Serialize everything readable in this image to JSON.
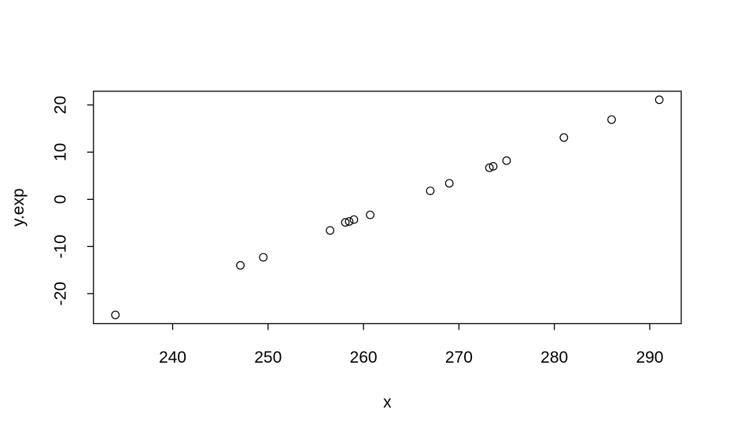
{
  "chart_data": {
    "type": "scatter",
    "title": "",
    "xlabel": "x",
    "ylabel": "y.exp",
    "marker": "open-circle",
    "marker_color": "#000000",
    "background_color": "#ffffff",
    "grid": false,
    "legend": null,
    "x_ticks": [
      240,
      250,
      260,
      270,
      280,
      290
    ],
    "y_ticks": [
      -20,
      -10,
      0,
      10,
      20
    ],
    "x_range": [
      231.7,
      293.3
    ],
    "y_range": [
      -26.35,
      22.9
    ],
    "points": [
      {
        "x": 234.0,
        "y": -24.5
      },
      {
        "x": 247.1,
        "y": -14.0
      },
      {
        "x": 249.5,
        "y": -12.3
      },
      {
        "x": 256.5,
        "y": -6.6
      },
      {
        "x": 258.1,
        "y": -4.9
      },
      {
        "x": 258.5,
        "y": -4.7
      },
      {
        "x": 259.0,
        "y": -4.3
      },
      {
        "x": 260.7,
        "y": -3.3
      },
      {
        "x": 267.0,
        "y": 1.8
      },
      {
        "x": 269.0,
        "y": 3.4
      },
      {
        "x": 273.2,
        "y": 6.7
      },
      {
        "x": 273.6,
        "y": 7.0
      },
      {
        "x": 275.0,
        "y": 8.2
      },
      {
        "x": 281.0,
        "y": 13.1
      },
      {
        "x": 286.0,
        "y": 16.9
      },
      {
        "x": 291.0,
        "y": 21.1
      }
    ]
  }
}
